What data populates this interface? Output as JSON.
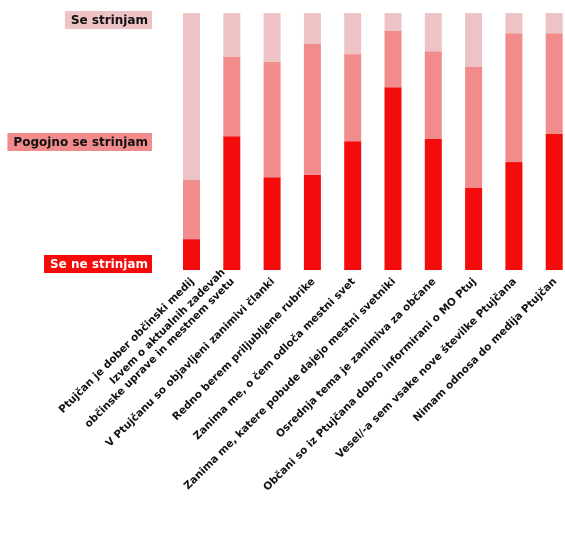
{
  "chart_data": {
    "type": "bar",
    "stacked": true,
    "orientation": "vertical",
    "categories": [
      "Ptujčan je dober občinski medij",
      "Izvem o aktualnih zadevah občinske uprave in mestnem svetu",
      "V Ptujčanu so objavljeni zanimivi članki",
      "Redno berem priljubljene rubrike",
      "Zanima me, o čem odloča mestni svet",
      "Zanima me, katere pobude dajejo mestni svetniki",
      "Osrednja tema je zanimiva za občane",
      "Občani so iz Ptujčana dobro informirani o MO Ptuj",
      "Vesel/-a sem vsake nove številke Ptujčana",
      "Nimam odnosa do medija Ptujčan"
    ],
    "category_lines": [
      [
        "Ptujčan je dober občinski medij"
      ],
      [
        "Izvem o aktualnih zadevah",
        "občinske uprave in mestnem svetu"
      ],
      [
        "V Ptujčanu so objavljeni zanimivi članki"
      ],
      [
        "Redno berem priljubljene rubrike"
      ],
      [
        "Zanima me, o čem odloča mestni svet"
      ],
      [
        "Zanima me, katere pobude dajejo mestni svetniki"
      ],
      [
        "Osrednja tema je zanimiva za občane"
      ],
      [
        "Občani so iz Ptujčana dobro informirani o MO Ptuj"
      ],
      [
        "Vesel/-a sem vsake nove številke Ptujčana"
      ],
      [
        "Nimam odnosa do medija Ptujčan"
      ]
    ],
    "series": [
      {
        "name": "Se ne strinjam",
        "color": "#f40b0b",
        "values": [
          12,
          52,
          36,
          37,
          50,
          71,
          51,
          32,
          42,
          53
        ]
      },
      {
        "name": "Pogojno se strinjam",
        "color": "#f28c8c",
        "values": [
          23,
          31,
          45,
          51,
          34,
          22,
          34,
          47,
          50,
          39
        ]
      },
      {
        "name": "Se strinjam",
        "color": "#edc3c5",
        "values": [
          65,
          17,
          19,
          12,
          16,
          7,
          15,
          21,
          8,
          8
        ]
      }
    ],
    "ylim": [
      0,
      100
    ],
    "legend_position": "left",
    "grid": false
  }
}
